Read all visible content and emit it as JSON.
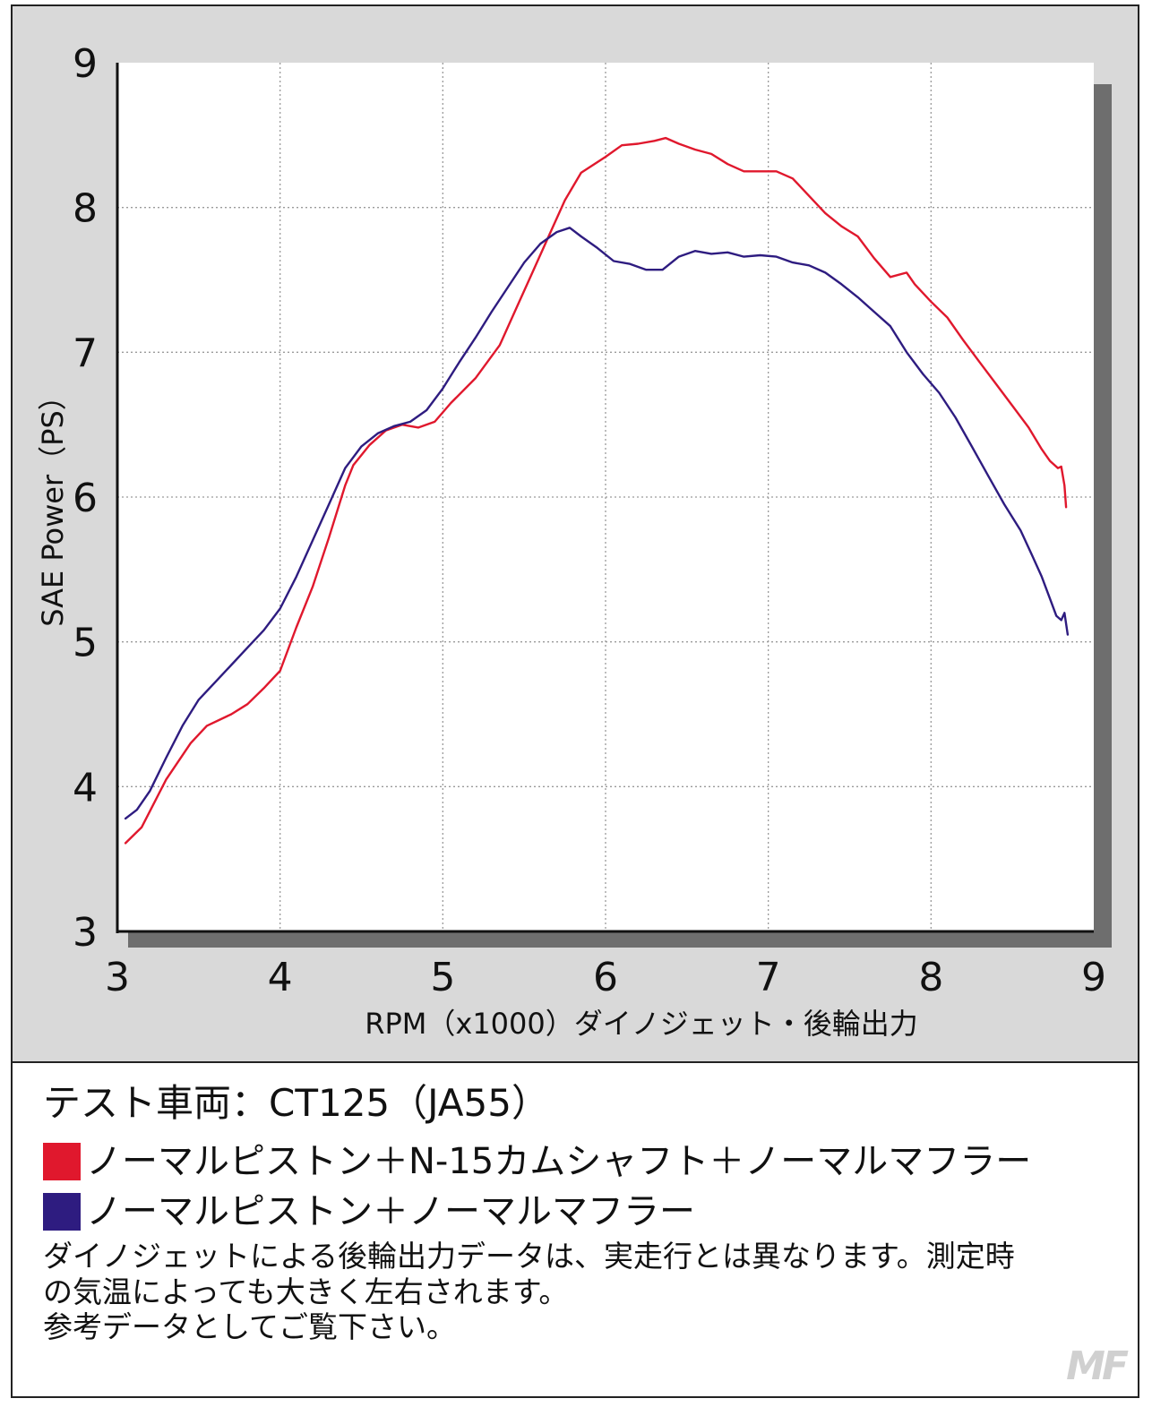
{
  "chart_data": {
    "type": "line",
    "xlabel": "RPM（x1000）ダイノジェット・後輪出力",
    "ylabel": "SAE Power（PS）",
    "xlim": [
      3,
      9
    ],
    "ylim": [
      3,
      9
    ],
    "xticks": [
      "3",
      "4",
      "5",
      "6",
      "7",
      "8",
      "9"
    ],
    "yticks": [
      "3",
      "4",
      "5",
      "6",
      "7",
      "8",
      "9"
    ],
    "grid": true,
    "series": [
      {
        "name": "ノーマルピストン＋N-15カムシャフト＋ノーマルマフラー",
        "color": "#e0182d",
        "points": [
          [
            3.05,
            3.61
          ],
          [
            3.15,
            3.72
          ],
          [
            3.3,
            4.05
          ],
          [
            3.45,
            4.3
          ],
          [
            3.55,
            4.42
          ],
          [
            3.7,
            4.5
          ],
          [
            3.8,
            4.57
          ],
          [
            3.9,
            4.68
          ],
          [
            4.0,
            4.8
          ],
          [
            4.1,
            5.1
          ],
          [
            4.2,
            5.38
          ],
          [
            4.3,
            5.72
          ],
          [
            4.4,
            6.08
          ],
          [
            4.45,
            6.22
          ],
          [
            4.55,
            6.36
          ],
          [
            4.65,
            6.46
          ],
          [
            4.75,
            6.5
          ],
          [
            4.85,
            6.48
          ],
          [
            4.95,
            6.52
          ],
          [
            5.05,
            6.65
          ],
          [
            5.2,
            6.82
          ],
          [
            5.35,
            7.05
          ],
          [
            5.45,
            7.3
          ],
          [
            5.55,
            7.55
          ],
          [
            5.65,
            7.8
          ],
          [
            5.75,
            8.05
          ],
          [
            5.85,
            8.24
          ],
          [
            6.0,
            8.35
          ],
          [
            6.1,
            8.43
          ],
          [
            6.2,
            8.44
          ],
          [
            6.3,
            8.46
          ],
          [
            6.37,
            8.48
          ],
          [
            6.45,
            8.44
          ],
          [
            6.55,
            8.4
          ],
          [
            6.65,
            8.37
          ],
          [
            6.75,
            8.3
          ],
          [
            6.85,
            8.25
          ],
          [
            6.95,
            8.25
          ],
          [
            7.05,
            8.25
          ],
          [
            7.15,
            8.2
          ],
          [
            7.25,
            8.08
          ],
          [
            7.35,
            7.96
          ],
          [
            7.45,
            7.87
          ],
          [
            7.55,
            7.8
          ],
          [
            7.65,
            7.65
          ],
          [
            7.75,
            7.52
          ],
          [
            7.85,
            7.55
          ],
          [
            7.9,
            7.47
          ],
          [
            8.0,
            7.35
          ],
          [
            8.1,
            7.24
          ],
          [
            8.2,
            7.08
          ],
          [
            8.3,
            6.93
          ],
          [
            8.4,
            6.78
          ],
          [
            8.5,
            6.63
          ],
          [
            8.6,
            6.48
          ],
          [
            8.68,
            6.33
          ],
          [
            8.73,
            6.25
          ],
          [
            8.78,
            6.2
          ],
          [
            8.8,
            6.21
          ],
          [
            8.82,
            6.08
          ],
          [
            8.83,
            5.93
          ]
        ]
      },
      {
        "name": "ノーマルピストン＋ノーマルマフラー",
        "color": "#2e1c80",
        "points": [
          [
            3.05,
            3.78
          ],
          [
            3.12,
            3.84
          ],
          [
            3.2,
            3.97
          ],
          [
            3.3,
            4.2
          ],
          [
            3.4,
            4.42
          ],
          [
            3.5,
            4.6
          ],
          [
            3.6,
            4.72
          ],
          [
            3.7,
            4.84
          ],
          [
            3.8,
            4.96
          ],
          [
            3.9,
            5.08
          ],
          [
            4.0,
            5.23
          ],
          [
            4.1,
            5.45
          ],
          [
            4.2,
            5.7
          ],
          [
            4.3,
            5.95
          ],
          [
            4.4,
            6.2
          ],
          [
            4.5,
            6.35
          ],
          [
            4.6,
            6.44
          ],
          [
            4.7,
            6.49
          ],
          [
            4.8,
            6.52
          ],
          [
            4.9,
            6.6
          ],
          [
            5.0,
            6.75
          ],
          [
            5.1,
            6.93
          ],
          [
            5.2,
            7.1
          ],
          [
            5.3,
            7.28
          ],
          [
            5.4,
            7.45
          ],
          [
            5.5,
            7.62
          ],
          [
            5.6,
            7.75
          ],
          [
            5.7,
            7.83
          ],
          [
            5.78,
            7.86
          ],
          [
            5.85,
            7.8
          ],
          [
            5.95,
            7.72
          ],
          [
            6.05,
            7.63
          ],
          [
            6.15,
            7.61
          ],
          [
            6.25,
            7.57
          ],
          [
            6.35,
            7.57
          ],
          [
            6.45,
            7.66
          ],
          [
            6.55,
            7.7
          ],
          [
            6.65,
            7.68
          ],
          [
            6.75,
            7.69
          ],
          [
            6.85,
            7.66
          ],
          [
            6.95,
            7.67
          ],
          [
            7.05,
            7.66
          ],
          [
            7.15,
            7.62
          ],
          [
            7.25,
            7.6
          ],
          [
            7.35,
            7.55
          ],
          [
            7.45,
            7.47
          ],
          [
            7.55,
            7.38
          ],
          [
            7.65,
            7.28
          ],
          [
            7.75,
            7.18
          ],
          [
            7.85,
            7.0
          ],
          [
            7.95,
            6.85
          ],
          [
            8.05,
            6.72
          ],
          [
            8.15,
            6.55
          ],
          [
            8.25,
            6.35
          ],
          [
            8.35,
            6.15
          ],
          [
            8.45,
            5.95
          ],
          [
            8.55,
            5.77
          ],
          [
            8.62,
            5.6
          ],
          [
            8.68,
            5.45
          ],
          [
            8.73,
            5.3
          ],
          [
            8.77,
            5.18
          ],
          [
            8.8,
            5.15
          ],
          [
            8.82,
            5.2
          ],
          [
            8.84,
            5.05
          ]
        ]
      }
    ]
  },
  "legend": {
    "vehicle": "テスト車両：CT125（JA55）",
    "items": [
      {
        "label": "ノーマルピストン＋N-15カムシャフト＋ノーマルマフラー",
        "color": "#e0182d"
      },
      {
        "label": "ノーマルピストン＋ノーマルマフラー",
        "color": "#2e1c80"
      }
    ],
    "note_lines": [
      "ダイノジェットによる後輪出力データは、実走行とは異なります。測定時",
      "の気温によっても大きく左右されます。",
      "参考データとしてご覧下さい。"
    ]
  },
  "watermark": "MF"
}
